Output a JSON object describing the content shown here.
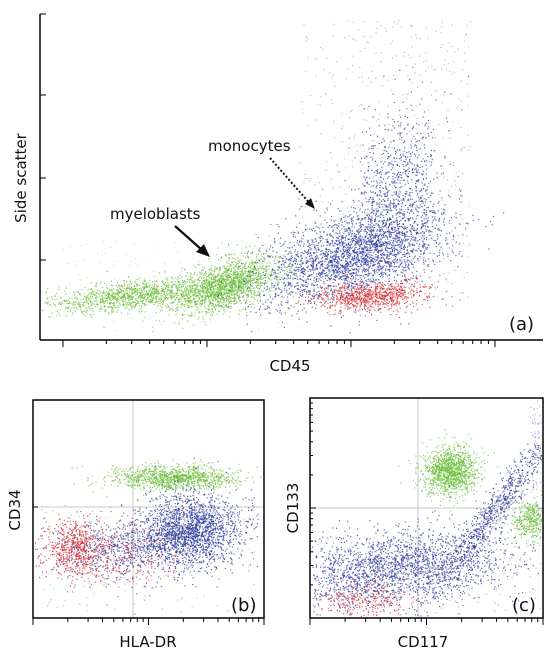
{
  "chart_data": [
    {
      "type": "scatter",
      "panel_label": "(a)",
      "xlabel": "CD45",
      "ylabel": "Side scatter",
      "x_scale": "log",
      "grid": false,
      "annotations": [
        {
          "text": "monocytes",
          "arrow": "dotted"
        },
        {
          "text": "myeloblasts",
          "arrow": "solid"
        }
      ],
      "series": [
        {
          "color": "#6bbf3a",
          "description_points": [
            [
              1.3,
              1.3
            ],
            [
              1.6,
              1.1
            ],
            [
              2.6,
              1.25
            ],
            [
              2.9,
              1.5
            ],
            [
              3.1,
              1.6
            ],
            [
              2.5,
              1.8
            ]
          ]
        },
        {
          "color": "#2e3b9c",
          "description_points": [
            [
              3.1,
              1.7
            ],
            [
              3.4,
              2.3
            ],
            [
              3.6,
              3.0
            ],
            [
              3.8,
              2.6
            ],
            [
              4.0,
              2.2
            ],
            [
              3.7,
              3.5
            ]
          ]
        },
        {
          "color": "#e0282a",
          "description_points": [
            [
              3.4,
              1.3
            ],
            [
              3.6,
              1.45
            ],
            [
              3.9,
              1.35
            ]
          ]
        }
      ],
      "colors": {
        "green": "#6bbf3a",
        "blue": "#2e3b9c",
        "red": "#e0282a"
      }
    },
    {
      "type": "scatter",
      "panel_label": "(b)",
      "xlabel": "HLA-DR",
      "ylabel": "CD34",
      "x_scale": "log",
      "grid": true
    },
    {
      "type": "scatter",
      "panel_label": "(c)",
      "xlabel": "CD117",
      "ylabel": "CD133",
      "x_scale": "log",
      "grid": true
    }
  ]
}
